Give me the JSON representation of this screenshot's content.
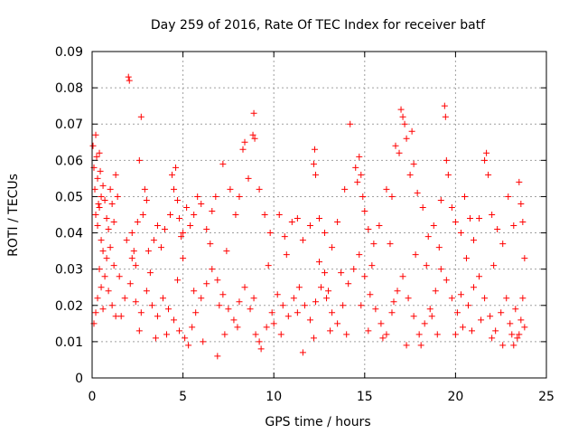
{
  "chart_data": {
    "type": "scatter",
    "title": "Day 259 of 2016, Rate Of TEC Index for receiver batf",
    "xlabel": "GPS time / hours",
    "ylabel": "ROTI / TECUs",
    "xlim": [
      0,
      25
    ],
    "ylim": [
      0,
      0.09
    ],
    "x_ticks": [
      0,
      5,
      10,
      15,
      20,
      25
    ],
    "x_tick_labels": [
      "0",
      "5",
      "10",
      "15",
      "20",
      "25"
    ],
    "y_ticks": [
      0,
      0.01,
      0.02,
      0.03,
      0.04,
      0.05,
      0.06,
      0.07,
      0.08,
      0.09
    ],
    "y_tick_labels": [
      "0",
      "0.01",
      "0.02",
      "0.03",
      "0.04",
      "0.05",
      "0.06",
      "0.07",
      "0.08",
      "0.09"
    ],
    "grid": true,
    "marker": "+",
    "color": "#ff0000",
    "series": [
      {
        "name": "ROTI",
        "points": [
          [
            0.05,
            0.064
          ],
          [
            0.1,
            0.058
          ],
          [
            0.15,
            0.052
          ],
          [
            0.2,
            0.067
          ],
          [
            0.25,
            0.061
          ],
          [
            0.3,
            0.055
          ],
          [
            0.35,
            0.048
          ],
          [
            0.4,
            0.062
          ],
          [
            0.45,
            0.057
          ],
          [
            0.5,
            0.05
          ],
          [
            0.2,
            0.045
          ],
          [
            0.3,
            0.042
          ],
          [
            0.4,
            0.047
          ],
          [
            0.6,
            0.053
          ],
          [
            0.7,
            0.049
          ],
          [
            0.8,
            0.044
          ],
          [
            0.5,
            0.038
          ],
          [
            0.6,
            0.035
          ],
          [
            0.9,
            0.041
          ],
          [
            1.0,
            0.052
          ],
          [
            1.1,
            0.048
          ],
          [
            1.2,
            0.043
          ],
          [
            1.3,
            0.056
          ],
          [
            1.4,
            0.05
          ],
          [
            0.1,
            0.015
          ],
          [
            0.2,
            0.018
          ],
          [
            0.3,
            0.022
          ],
          [
            0.5,
            0.025
          ],
          [
            0.7,
            0.028
          ],
          [
            0.9,
            0.024
          ],
          [
            1.1,
            0.02
          ],
          [
            1.3,
            0.017
          ],
          [
            2.0,
            0.083
          ],
          [
            2.05,
            0.082
          ],
          [
            2.7,
            0.072
          ],
          [
            2.6,
            0.06
          ],
          [
            2.9,
            0.052
          ],
          [
            3.0,
            0.049
          ],
          [
            2.8,
            0.045
          ],
          [
            2.5,
            0.043
          ],
          [
            2.2,
            0.04
          ],
          [
            1.9,
            0.038
          ],
          [
            2.3,
            0.035
          ],
          [
            2.4,
            0.031
          ],
          [
            3.4,
            0.038
          ],
          [
            3.6,
            0.042
          ],
          [
            3.8,
            0.036
          ],
          [
            4.0,
            0.041
          ],
          [
            4.3,
            0.045
          ],
          [
            4.4,
            0.056
          ],
          [
            4.5,
            0.052
          ],
          [
            4.6,
            0.058
          ],
          [
            4.7,
            0.049
          ],
          [
            4.8,
            0.044
          ],
          [
            4.9,
            0.039
          ],
          [
            5.0,
            0.033
          ],
          [
            5.2,
            0.047
          ],
          [
            5.4,
            0.042
          ],
          [
            5.6,
            0.045
          ],
          [
            5.8,
            0.05
          ],
          [
            6.0,
            0.048
          ],
          [
            6.3,
            0.041
          ],
          [
            6.6,
            0.046
          ],
          [
            6.8,
            0.05
          ],
          [
            7.2,
            0.059
          ],
          [
            7.6,
            0.052
          ],
          [
            7.9,
            0.045
          ],
          [
            8.1,
            0.05
          ],
          [
            8.3,
            0.063
          ],
          [
            8.4,
            0.065
          ],
          [
            8.6,
            0.055
          ],
          [
            8.9,
            0.073
          ],
          [
            8.85,
            0.067
          ],
          [
            8.95,
            0.066
          ],
          [
            9.2,
            0.052
          ],
          [
            9.5,
            0.045
          ],
          [
            9.8,
            0.04
          ],
          [
            10.3,
            0.045
          ],
          [
            10.6,
            0.039
          ],
          [
            11.0,
            0.043
          ],
          [
            11.3,
            0.044
          ],
          [
            11.6,
            0.038
          ],
          [
            12.0,
            0.042
          ],
          [
            12.2,
            0.059
          ],
          [
            12.25,
            0.063
          ],
          [
            12.3,
            0.056
          ],
          [
            12.5,
            0.044
          ],
          [
            12.8,
            0.04
          ],
          [
            13.2,
            0.036
          ],
          [
            13.5,
            0.043
          ],
          [
            13.9,
            0.052
          ],
          [
            14.2,
            0.07
          ],
          [
            14.5,
            0.058
          ],
          [
            14.6,
            0.054
          ],
          [
            14.7,
            0.061
          ],
          [
            14.8,
            0.056
          ],
          [
            14.9,
            0.05
          ],
          [
            15.0,
            0.046
          ],
          [
            15.2,
            0.041
          ],
          [
            15.5,
            0.037
          ],
          [
            15.8,
            0.042
          ],
          [
            16.2,
            0.052
          ],
          [
            16.5,
            0.05
          ],
          [
            16.7,
            0.064
          ],
          [
            16.9,
            0.062
          ],
          [
            17.0,
            0.074
          ],
          [
            17.1,
            0.072
          ],
          [
            17.2,
            0.07
          ],
          [
            17.3,
            0.066
          ],
          [
            17.5,
            0.056
          ],
          [
            17.6,
            0.068
          ],
          [
            17.7,
            0.059
          ],
          [
            17.9,
            0.051
          ],
          [
            18.2,
            0.047
          ],
          [
            18.5,
            0.039
          ],
          [
            18.8,
            0.042
          ],
          [
            19.2,
            0.049
          ],
          [
            19.4,
            0.075
          ],
          [
            19.45,
            0.072
          ],
          [
            19.5,
            0.06
          ],
          [
            19.6,
            0.056
          ],
          [
            19.8,
            0.047
          ],
          [
            20.0,
            0.043
          ],
          [
            20.3,
            0.04
          ],
          [
            20.5,
            0.05
          ],
          [
            20.8,
            0.044
          ],
          [
            21.0,
            0.038
          ],
          [
            21.3,
            0.044
          ],
          [
            21.6,
            0.06
          ],
          [
            21.7,
            0.062
          ],
          [
            21.8,
            0.056
          ],
          [
            22.0,
            0.045
          ],
          [
            22.3,
            0.041
          ],
          [
            22.6,
            0.037
          ],
          [
            22.9,
            0.05
          ],
          [
            23.2,
            0.042
          ],
          [
            23.5,
            0.054
          ],
          [
            23.6,
            0.048
          ],
          [
            23.7,
            0.043
          ],
          [
            23.8,
            0.033
          ],
          [
            23.7,
            0.022
          ],
          [
            23.6,
            0.016
          ],
          [
            23.5,
            0.012
          ],
          [
            23.8,
            0.014
          ],
          [
            0.4,
            0.03
          ],
          [
            0.8,
            0.033
          ],
          [
            1.2,
            0.031
          ],
          [
            1.5,
            0.028
          ],
          [
            1.8,
            0.022
          ],
          [
            2.1,
            0.026
          ],
          [
            2.4,
            0.021
          ],
          [
            2.7,
            0.018
          ],
          [
            3.0,
            0.024
          ],
          [
            3.3,
            0.02
          ],
          [
            3.6,
            0.017
          ],
          [
            3.9,
            0.022
          ],
          [
            4.2,
            0.019
          ],
          [
            4.5,
            0.016
          ],
          [
            4.8,
            0.013
          ],
          [
            5.1,
            0.011
          ],
          [
            5.3,
            0.009
          ],
          [
            5.5,
            0.014
          ],
          [
            5.7,
            0.018
          ],
          [
            6.0,
            0.022
          ],
          [
            6.3,
            0.026
          ],
          [
            6.6,
            0.03
          ],
          [
            6.9,
            0.027
          ],
          [
            7.2,
            0.023
          ],
          [
            7.5,
            0.019
          ],
          [
            7.8,
            0.016
          ],
          [
            8.1,
            0.021
          ],
          [
            8.4,
            0.025
          ],
          [
            8.7,
            0.019
          ],
          [
            9.0,
            0.012
          ],
          [
            9.3,
            0.008
          ],
          [
            9.6,
            0.014
          ],
          [
            9.9,
            0.018
          ],
          [
            10.2,
            0.023
          ],
          [
            10.5,
            0.02
          ],
          [
            10.8,
            0.017
          ],
          [
            11.1,
            0.022
          ],
          [
            11.4,
            0.025
          ],
          [
            11.7,
            0.02
          ],
          [
            12.0,
            0.016
          ],
          [
            12.3,
            0.021
          ],
          [
            12.6,
            0.025
          ],
          [
            12.9,
            0.022
          ],
          [
            13.2,
            0.018
          ],
          [
            13.5,
            0.015
          ],
          [
            13.8,
            0.02
          ],
          [
            14.1,
            0.026
          ],
          [
            14.4,
            0.03
          ],
          [
            14.7,
            0.034
          ],
          [
            15.0,
            0.028
          ],
          [
            15.3,
            0.023
          ],
          [
            15.6,
            0.019
          ],
          [
            15.9,
            0.015
          ],
          [
            16.2,
            0.012
          ],
          [
            16.5,
            0.018
          ],
          [
            16.8,
            0.024
          ],
          [
            17.1,
            0.028
          ],
          [
            17.4,
            0.022
          ],
          [
            17.7,
            0.017
          ],
          [
            18.0,
            0.012
          ],
          [
            18.3,
            0.015
          ],
          [
            18.6,
            0.019
          ],
          [
            18.9,
            0.024
          ],
          [
            19.2,
            0.03
          ],
          [
            19.5,
            0.027
          ],
          [
            19.8,
            0.022
          ],
          [
            20.1,
            0.018
          ],
          [
            20.4,
            0.014
          ],
          [
            20.7,
            0.02
          ],
          [
            21.0,
            0.025
          ],
          [
            21.3,
            0.028
          ],
          [
            21.6,
            0.022
          ],
          [
            21.9,
            0.017
          ],
          [
            22.2,
            0.013
          ],
          [
            22.5,
            0.018
          ],
          [
            22.8,
            0.022
          ],
          [
            23.1,
            0.012
          ],
          [
            23.2,
            0.009
          ],
          [
            23.4,
            0.011
          ],
          [
            23.0,
            0.015
          ],
          [
            0.6,
            0.019
          ],
          [
            1.6,
            0.017
          ],
          [
            2.6,
            0.013
          ],
          [
            3.5,
            0.011
          ],
          [
            4.1,
            0.012
          ],
          [
            6.1,
            0.01
          ],
          [
            6.9,
            0.006
          ],
          [
            7.3,
            0.012
          ],
          [
            8.0,
            0.014
          ],
          [
            9.2,
            0.01
          ],
          [
            10.4,
            0.012
          ],
          [
            11.6,
            0.007
          ],
          [
            12.2,
            0.011
          ],
          [
            13.1,
            0.013
          ],
          [
            14.0,
            0.012
          ],
          [
            15.2,
            0.013
          ],
          [
            16.0,
            0.011
          ],
          [
            17.3,
            0.009
          ],
          [
            18.1,
            0.009
          ],
          [
            19.0,
            0.012
          ],
          [
            20.0,
            0.012
          ],
          [
            20.9,
            0.013
          ],
          [
            22.0,
            0.011
          ],
          [
            22.6,
            0.009
          ],
          [
            1.0,
            0.036
          ],
          [
            2.2,
            0.033
          ],
          [
            3.2,
            0.029
          ],
          [
            5.0,
            0.04
          ],
          [
            6.5,
            0.037
          ],
          [
            7.4,
            0.035
          ],
          [
            9.7,
            0.031
          ],
          [
            10.7,
            0.034
          ],
          [
            12.5,
            0.032
          ],
          [
            13.7,
            0.029
          ],
          [
            16.4,
            0.037
          ],
          [
            17.8,
            0.034
          ],
          [
            18.4,
            0.031
          ],
          [
            19.1,
            0.036
          ],
          [
            20.6,
            0.033
          ],
          [
            22.1,
            0.031
          ],
          [
            5.6,
            0.024
          ],
          [
            7.0,
            0.02
          ],
          [
            8.9,
            0.022
          ],
          [
            10.0,
            0.015
          ],
          [
            11.3,
            0.018
          ],
          [
            13.0,
            0.024
          ],
          [
            14.8,
            0.02
          ],
          [
            16.6,
            0.021
          ],
          [
            18.7,
            0.017
          ],
          [
            20.3,
            0.023
          ],
          [
            21.4,
            0.016
          ],
          [
            23.3,
            0.019
          ],
          [
            4.7,
            0.027
          ],
          [
            3.1,
            0.035
          ],
          [
            12.8,
            0.029
          ],
          [
            15.4,
            0.031
          ]
        ]
      }
    ]
  }
}
